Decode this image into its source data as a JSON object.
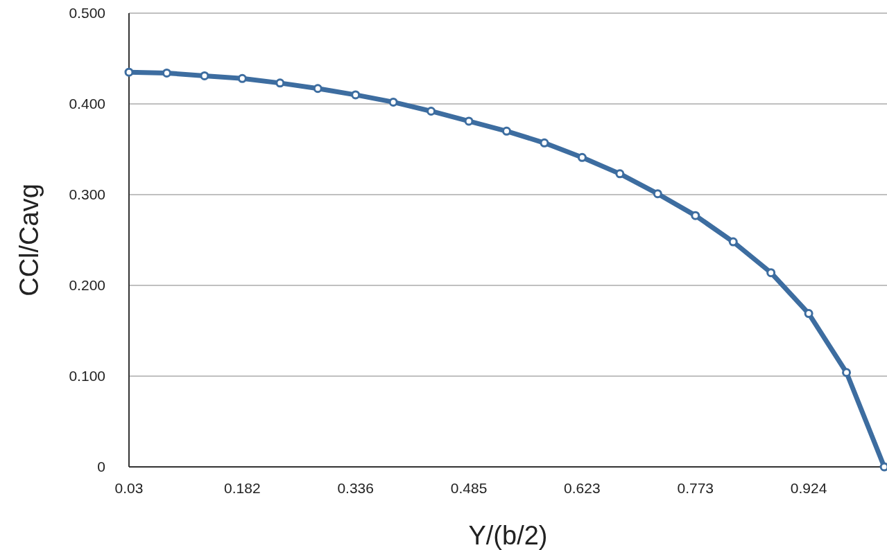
{
  "chart_data": {
    "type": "line",
    "xlabel": "Y/(b/2)",
    "ylabel": "CCl/Cavg",
    "categories": [
      "0.03",
      null,
      null,
      "0.182",
      null,
      null,
      "0.336",
      null,
      null,
      "0.485",
      null,
      null,
      "0.623",
      null,
      null,
      "0.773",
      null,
      null,
      "0.924",
      null,
      null
    ],
    "series": [
      {
        "color": "#3d6da0",
        "values": [
          0.435,
          0.434,
          0.431,
          0.428,
          0.423,
          0.417,
          0.41,
          0.402,
          0.392,
          0.381,
          0.37,
          0.357,
          0.341,
          0.323,
          0.301,
          0.277,
          0.248,
          0.214,
          0.169,
          0.104,
          0
        ]
      }
    ],
    "ylim": [
      0,
      0.5
    ],
    "yticks": [
      {
        "value": 0,
        "label": "0"
      },
      {
        "value": 0.1,
        "label": "0.100"
      },
      {
        "value": 0.2,
        "label": "0.200"
      },
      {
        "value": 0.3,
        "label": "0.300"
      },
      {
        "value": 0.4,
        "label": "0.400"
      },
      {
        "value": 0.5,
        "label": "0.500"
      }
    ],
    "grid": "y",
    "marker": "circle",
    "line_style": "solid"
  }
}
